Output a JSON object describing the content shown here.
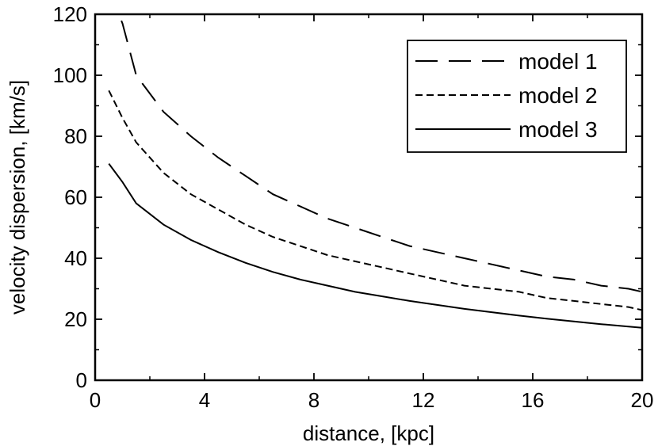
{
  "chart_data": {
    "type": "line",
    "xlabel": "distance, [kpc]",
    "ylabel": "velocity dispersion, [km/s]",
    "xlim": [
      0,
      20
    ],
    "ylim": [
      0,
      120
    ],
    "x_ticks": [
      0,
      4,
      8,
      12,
      16,
      20
    ],
    "y_ticks": [
      0,
      20,
      40,
      60,
      80,
      100,
      120
    ],
    "grid": false,
    "legend_position": "top-right",
    "series": [
      {
        "name": "model 1",
        "style": "long-dash",
        "x": [
          0.5,
          1.0,
          1.5,
          2.5,
          3.5,
          4.5,
          5.5,
          6.5,
          7.5,
          8.5,
          9.5,
          10.5,
          11.5,
          12.5,
          13.5,
          14.5,
          15.5,
          16.5,
          17.5,
          18.5,
          19.5,
          20.0
        ],
        "y": [
          128,
          117,
          100,
          88,
          80,
          73,
          67,
          61,
          57,
          53,
          50,
          47,
          44,
          42,
          40,
          38,
          36,
          34,
          33,
          31,
          30,
          29
        ]
      },
      {
        "name": "model 2",
        "style": "short-dash",
        "x": [
          0.5,
          1.0,
          1.5,
          2.5,
          3.5,
          4.5,
          5.5,
          6.5,
          7.5,
          8.5,
          9.5,
          10.5,
          11.5,
          12.5,
          13.5,
          14.5,
          15.5,
          16.5,
          17.5,
          18.5,
          19.5,
          20.0
        ],
        "y": [
          95,
          86,
          78,
          68,
          61,
          56,
          51,
          47,
          44,
          41,
          39,
          37,
          35,
          33,
          31,
          30,
          29,
          27,
          26,
          25,
          24,
          23
        ]
      },
      {
        "name": "model 3",
        "style": "solid",
        "x": [
          0.5,
          1.0,
          1.5,
          2.5,
          3.5,
          4.5,
          5.5,
          6.5,
          7.5,
          8.5,
          9.5,
          10.5,
          11.5,
          12.5,
          13.5,
          14.5,
          15.5,
          16.5,
          17.5,
          18.5,
          19.5,
          20.0
        ],
        "y": [
          71,
          65,
          58,
          51,
          46,
          42,
          38.5,
          35.5,
          33,
          31,
          29,
          27.5,
          26,
          24.7,
          23.4,
          22.3,
          21.2,
          20.2,
          19.3,
          18.4,
          17.6,
          17.2
        ]
      }
    ]
  }
}
